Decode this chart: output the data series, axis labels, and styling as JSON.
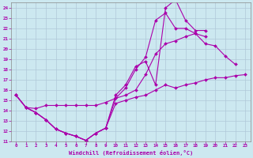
{
  "xlabel": "Windchill (Refroidissement éolien,°C)",
  "bg_color": "#cce8f0",
  "line_color": "#aa00aa",
  "marker": "D",
  "markersize": 2.0,
  "linewidth": 0.8,
  "xlim": [
    -0.5,
    23.5
  ],
  "ylim": [
    11,
    24.5
  ],
  "xticks": [
    0,
    1,
    2,
    3,
    4,
    5,
    6,
    7,
    8,
    9,
    10,
    11,
    12,
    13,
    14,
    15,
    16,
    17,
    18,
    19,
    20,
    21,
    22,
    23
  ],
  "yticks": [
    11,
    12,
    13,
    14,
    15,
    16,
    17,
    18,
    19,
    20,
    21,
    22,
    23,
    24
  ],
  "lines": [
    {
      "x": [
        0,
        1,
        2,
        3,
        4,
        5,
        6,
        7,
        8,
        9,
        10,
        11,
        12,
        13,
        14,
        15,
        16,
        17,
        18,
        19,
        20,
        21,
        22,
        23
      ],
      "y": [
        15.5,
        14.3,
        13.8,
        13.1,
        12.2,
        11.8,
        11.5,
        11.1,
        11.8,
        12.3,
        14.7,
        15.0,
        15.3,
        15.5,
        16.0,
        16.5,
        16.2,
        16.5,
        16.7,
        17.0,
        17.2,
        17.2,
        17.4,
        17.5
      ]
    },
    {
      "x": [
        0,
        1,
        2,
        3,
        4,
        5,
        6,
        7,
        8,
        9,
        10,
        11,
        12,
        13,
        14,
        15,
        16,
        17,
        18,
        19,
        20,
        21,
        22,
        23
      ],
      "y": [
        15.5,
        14.3,
        13.8,
        13.1,
        12.2,
        11.8,
        11.5,
        11.1,
        11.8,
        12.3,
        15.2,
        16.2,
        18.0,
        19.2,
        22.8,
        23.5,
        22.0,
        22.0,
        21.5,
        21.2,
        null,
        null,
        null,
        null
      ]
    },
    {
      "x": [
        0,
        1,
        2,
        3,
        4,
        5,
        6,
        7,
        8,
        9,
        10,
        11,
        12,
        13,
        14,
        15,
        16,
        17,
        18,
        19,
        20,
        21,
        22,
        23
      ],
      "y": [
        15.5,
        14.3,
        14.2,
        14.5,
        14.5,
        14.5,
        14.5,
        14.5,
        14.5,
        14.8,
        15.2,
        15.5,
        16.0,
        17.5,
        19.5,
        20.5,
        20.8,
        21.2,
        21.5,
        20.5,
        20.3,
        19.3,
        18.5,
        null
      ]
    },
    {
      "x": [
        0,
        1,
        2,
        3,
        4,
        5,
        6,
        7,
        8,
        9,
        10,
        11,
        12,
        13,
        14,
        15,
        16,
        17,
        18,
        19,
        20,
        21,
        22,
        23
      ],
      "y": [
        15.5,
        14.3,
        13.8,
        13.1,
        12.2,
        11.8,
        11.5,
        11.1,
        11.8,
        12.3,
        15.5,
        16.5,
        18.3,
        18.8,
        16.5,
        24.0,
        24.8,
        22.8,
        21.8,
        21.8,
        null,
        null,
        null,
        null
      ]
    }
  ]
}
